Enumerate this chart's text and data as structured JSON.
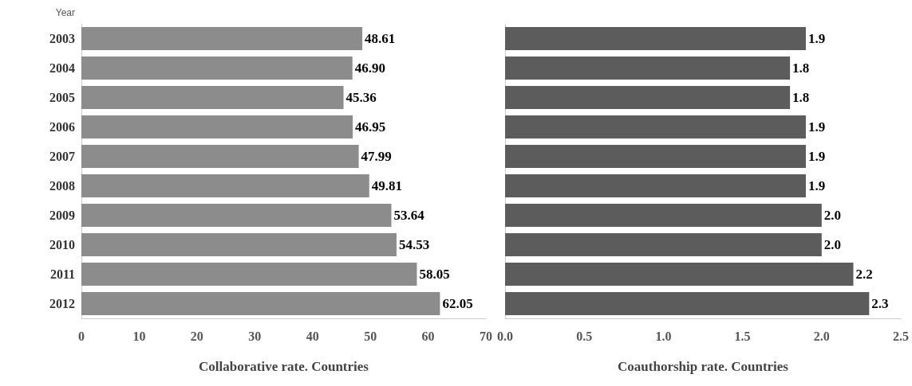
{
  "chart_data": [
    {
      "type": "bar",
      "orientation": "horizontal",
      "ylabel": "Year",
      "xlabel": "Collaborative rate. Countries",
      "categories": [
        "2003",
        "2004",
        "2005",
        "2006",
        "2007",
        "2008",
        "2009",
        "2010",
        "2011",
        "2012"
      ],
      "values": [
        48.61,
        46.9,
        45.36,
        46.95,
        47.99,
        49.81,
        53.64,
        54.53,
        58.05,
        62.05
      ],
      "value_labels": [
        "48.61",
        "46.90",
        "45.36",
        "46.95",
        "47.99",
        "49.81",
        "53.64",
        "54.53",
        "58.05",
        "62.05"
      ],
      "color": "#8c8c8c",
      "xlim": [
        0,
        70
      ],
      "xticks": [
        0,
        10,
        20,
        30,
        40,
        50,
        60,
        70
      ],
      "grid": false
    },
    {
      "type": "bar",
      "orientation": "horizontal",
      "xlabel": "Coauthorship rate. Countries",
      "categories": [
        "2003",
        "2004",
        "2005",
        "2006",
        "2007",
        "2008",
        "2009",
        "2010",
        "2011",
        "2012"
      ],
      "values": [
        1.9,
        1.8,
        1.8,
        1.9,
        1.9,
        1.9,
        2.0,
        2.0,
        2.2,
        2.3
      ],
      "value_labels": [
        "1.9",
        "1.8",
        "1.8",
        "1.9",
        "1.9",
        "1.9",
        "2.0",
        "2.0",
        "2.2",
        "2.3"
      ],
      "color": "#5c5c5c",
      "xlim": [
        0,
        2.5
      ],
      "xticks": [
        {
          "value": 0,
          "label": "0.0"
        },
        {
          "value": 0.5,
          "label": "0.5"
        },
        {
          "value": 1,
          "label": "1.0"
        },
        {
          "value": 1.5,
          "label": "1.5"
        },
        {
          "value": 2,
          "label": "2.0"
        },
        {
          "value": 2.5,
          "label": "2.5"
        }
      ],
      "tick_labels": "x",
      "grid": false
    }
  ]
}
